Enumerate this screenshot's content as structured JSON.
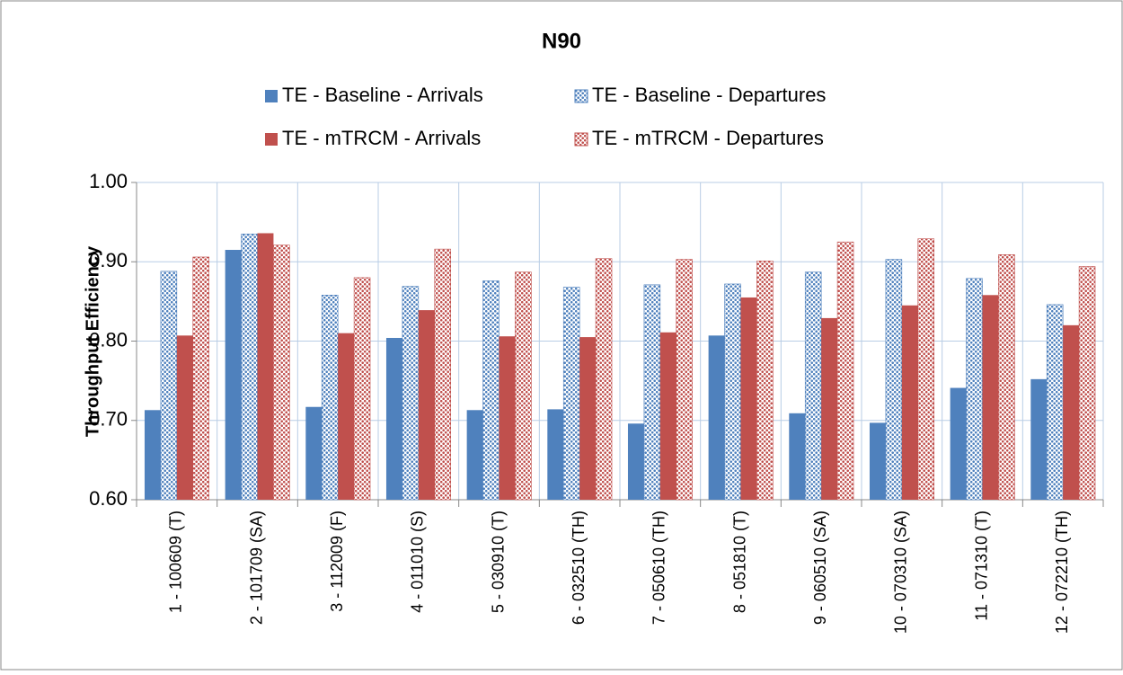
{
  "chart_data": {
    "type": "bar",
    "title": "N90",
    "y_label": "Throughput Efficiency",
    "categories": [
      "1 - 100609 (T)",
      "2 - 101709 (SA)",
      "3 - 112009 (F)",
      "4 - 011010 (S)",
      "5 - 030910 (T)",
      "6 - 032510 (TH)",
      "7 - 050610 (TH)",
      "8 - 051810 (T)",
      "9 - 060510 (SA)",
      "10 - 070310 (SA)",
      "11 - 071310 (T)",
      "12 - 072210 (TH)"
    ],
    "series": [
      {
        "name": "TE - Baseline - Arrivals",
        "color": "#4f81bd",
        "pattern": "solid",
        "values": [
          0.713,
          0.915,
          0.717,
          0.804,
          0.713,
          0.714,
          0.696,
          0.807,
          0.709,
          0.697,
          0.741,
          0.752
        ]
      },
      {
        "name": "TE - Baseline - Departures",
        "color": "#4f81bd",
        "pattern": "dotted",
        "values": [
          0.888,
          0.935,
          0.858,
          0.869,
          0.876,
          0.868,
          0.871,
          0.872,
          0.887,
          0.903,
          0.879,
          0.846
        ]
      },
      {
        "name": "TE - mTRCM - Arrivals",
        "color": "#c0504d",
        "pattern": "solid",
        "values": [
          0.807,
          0.936,
          0.81,
          0.839,
          0.806,
          0.805,
          0.811,
          0.855,
          0.829,
          0.845,
          0.858,
          0.82
        ]
      },
      {
        "name": "TE - mTRCM - Departures",
        "color": "#c0504d",
        "pattern": "dotted",
        "values": [
          0.906,
          0.921,
          0.88,
          0.916,
          0.887,
          0.904,
          0.903,
          0.901,
          0.925,
          0.929,
          0.909,
          0.894
        ]
      }
    ],
    "ylim": [
      0.6,
      1.0
    ],
    "yticks": [
      {
        "value": 0.6,
        "label": "0.60"
      },
      {
        "value": 0.7,
        "label": "0.70"
      },
      {
        "value": 0.8,
        "label": "0.80"
      },
      {
        "value": 0.9,
        "label": "0.90"
      },
      {
        "value": 1.0,
        "label": "1.00"
      }
    ],
    "grid": true,
    "legend": "top"
  }
}
